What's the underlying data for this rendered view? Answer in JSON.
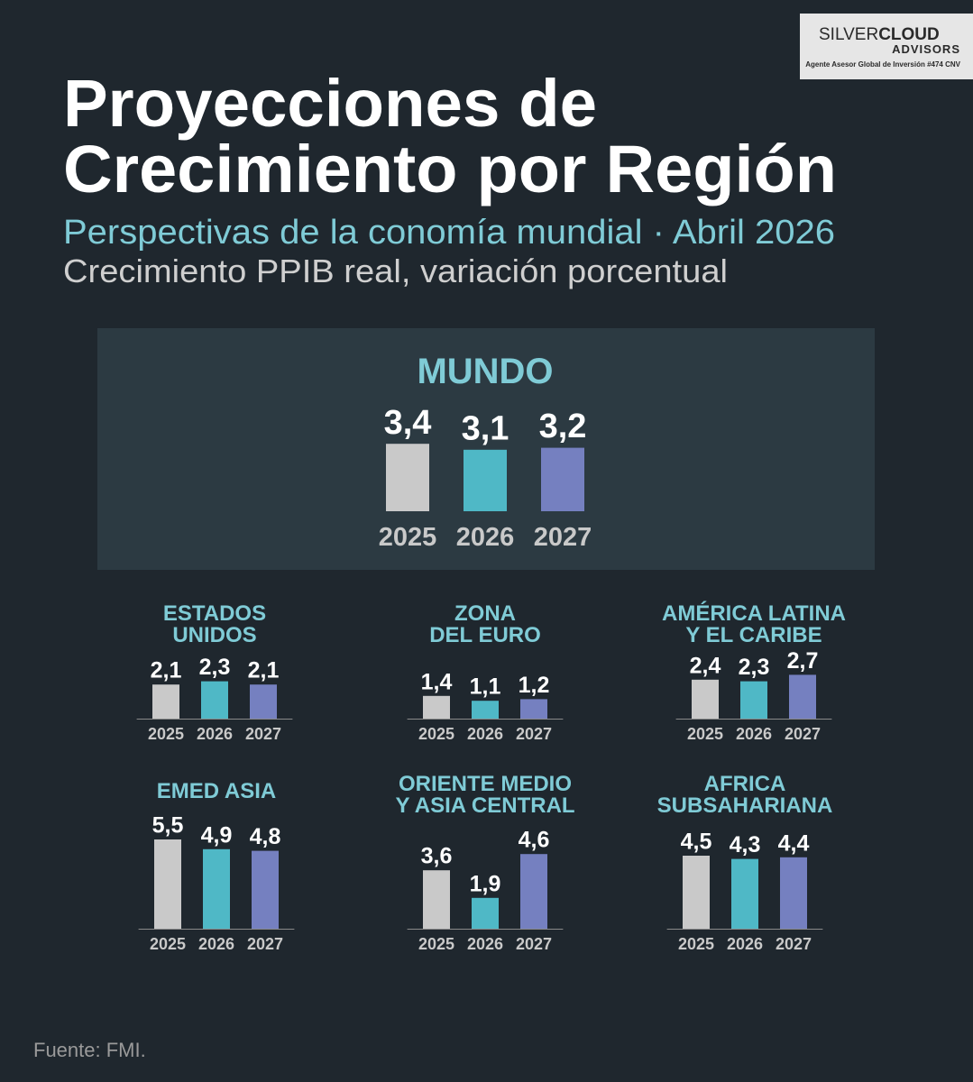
{
  "brand": {
    "name_light": "SILVER",
    "name_bold": "CLOUD",
    "line2": "ADVISORS",
    "line3": "Agente Asesor Global de Inversión #474 CNV"
  },
  "title": [
    "Proyecciones de",
    "Crecimiento por Región"
  ],
  "subtitle": "Perspectivas de la conomía mundial · Abril 2026",
  "description": "Crecimiento PPIB real, variación porcentual",
  "source": "Fuente: FMI.",
  "chart_data": [
    {
      "type": "bar",
      "title": [
        "MUNDO"
      ],
      "categories": [
        "2025",
        "2026",
        "2027"
      ],
      "values": [
        3.4,
        3.1,
        3.2
      ],
      "value_labels": [
        "3,4",
        "3,1",
        "3,2"
      ],
      "colors": [
        "#c9c9c9",
        "#4fb8c6",
        "#7580c0"
      ]
    },
    {
      "type": "bar",
      "title": [
        "ESTADOS",
        "UNIDOS"
      ],
      "categories": [
        "2025",
        "2026",
        "2027"
      ],
      "values": [
        2.1,
        2.3,
        2.1
      ],
      "value_labels": [
        "2,1",
        "2,3",
        "2,1"
      ],
      "colors": [
        "#c9c9c9",
        "#4fb8c6",
        "#7580c0"
      ]
    },
    {
      "type": "bar",
      "title": [
        "ZONA",
        "DEL EURO"
      ],
      "categories": [
        "2025",
        "2026",
        "2027"
      ],
      "values": [
        1.4,
        1.1,
        1.2
      ],
      "value_labels": [
        "1,4",
        "1,1",
        "1,2"
      ],
      "colors": [
        "#c9c9c9",
        "#4fb8c6",
        "#7580c0"
      ]
    },
    {
      "type": "bar",
      "title": [
        "AMÉRICA LATINA",
        "Y EL CARIBE"
      ],
      "categories": [
        "2025",
        "2026",
        "2027"
      ],
      "values": [
        2.4,
        2.3,
        2.7
      ],
      "value_labels": [
        "2,4",
        "2,3",
        "2,7"
      ],
      "colors": [
        "#c9c9c9",
        "#4fb8c6",
        "#7580c0"
      ]
    },
    {
      "type": "bar",
      "title": [
        "EMED ASIA"
      ],
      "categories": [
        "2025",
        "2026",
        "2027"
      ],
      "values": [
        5.5,
        4.9,
        4.8
      ],
      "value_labels": [
        "5,5",
        "4,9",
        "4,8"
      ],
      "colors": [
        "#c9c9c9",
        "#4fb8c6",
        "#7580c0"
      ]
    },
    {
      "type": "bar",
      "title": [
        "ORIENTE MEDIO",
        "Y ASIA CENTRAL"
      ],
      "categories": [
        "2025",
        "2026",
        "2027"
      ],
      "values": [
        3.6,
        1.9,
        4.6
      ],
      "value_labels": [
        "3,6",
        "1,9",
        "4,6"
      ],
      "colors": [
        "#c9c9c9",
        "#4fb8c6",
        "#7580c0"
      ]
    },
    {
      "type": "bar",
      "title": [
        "AFRICA",
        "SUBSAHARIANA"
      ],
      "categories": [
        "2025",
        "2026",
        "2027"
      ],
      "values": [
        4.5,
        4.3,
        4.4
      ],
      "value_labels": [
        "4,5",
        "4,3",
        "4,4"
      ],
      "colors": [
        "#c9c9c9",
        "#4fb8c6",
        "#7580c0"
      ]
    }
  ]
}
